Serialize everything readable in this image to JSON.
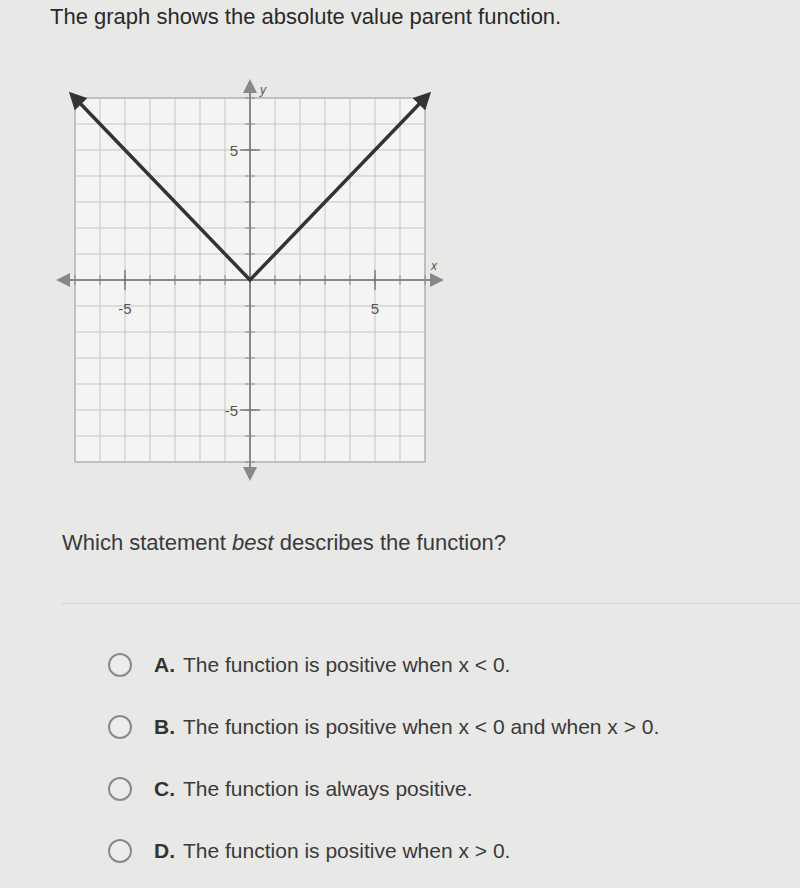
{
  "heading": "The graph shows the absolute value parent function.",
  "chart_data": {
    "type": "line",
    "x_label": "x",
    "y_label": "y",
    "x": [
      -7,
      0,
      7
    ],
    "values": [
      7,
      0,
      7
    ],
    "color": "#333333",
    "marker": "arrow",
    "line_style": "solid",
    "xlim": [
      -7,
      7
    ],
    "ylim": [
      -7,
      7
    ],
    "xticks": [
      -5,
      5
    ],
    "yticks": [
      -5,
      5
    ],
    "grid": true
  },
  "question": {
    "before": "Which statement ",
    "emphasis": "best",
    "after": " describes the function?"
  },
  "options": [
    {
      "letter": "A.",
      "text": "The function is positive when x < 0."
    },
    {
      "letter": "B.",
      "text": "The function is positive when x < 0 and when x > 0."
    },
    {
      "letter": "C.",
      "text": "The function is always positive."
    },
    {
      "letter": "D.",
      "text": "The function is positive when x > 0."
    }
  ]
}
